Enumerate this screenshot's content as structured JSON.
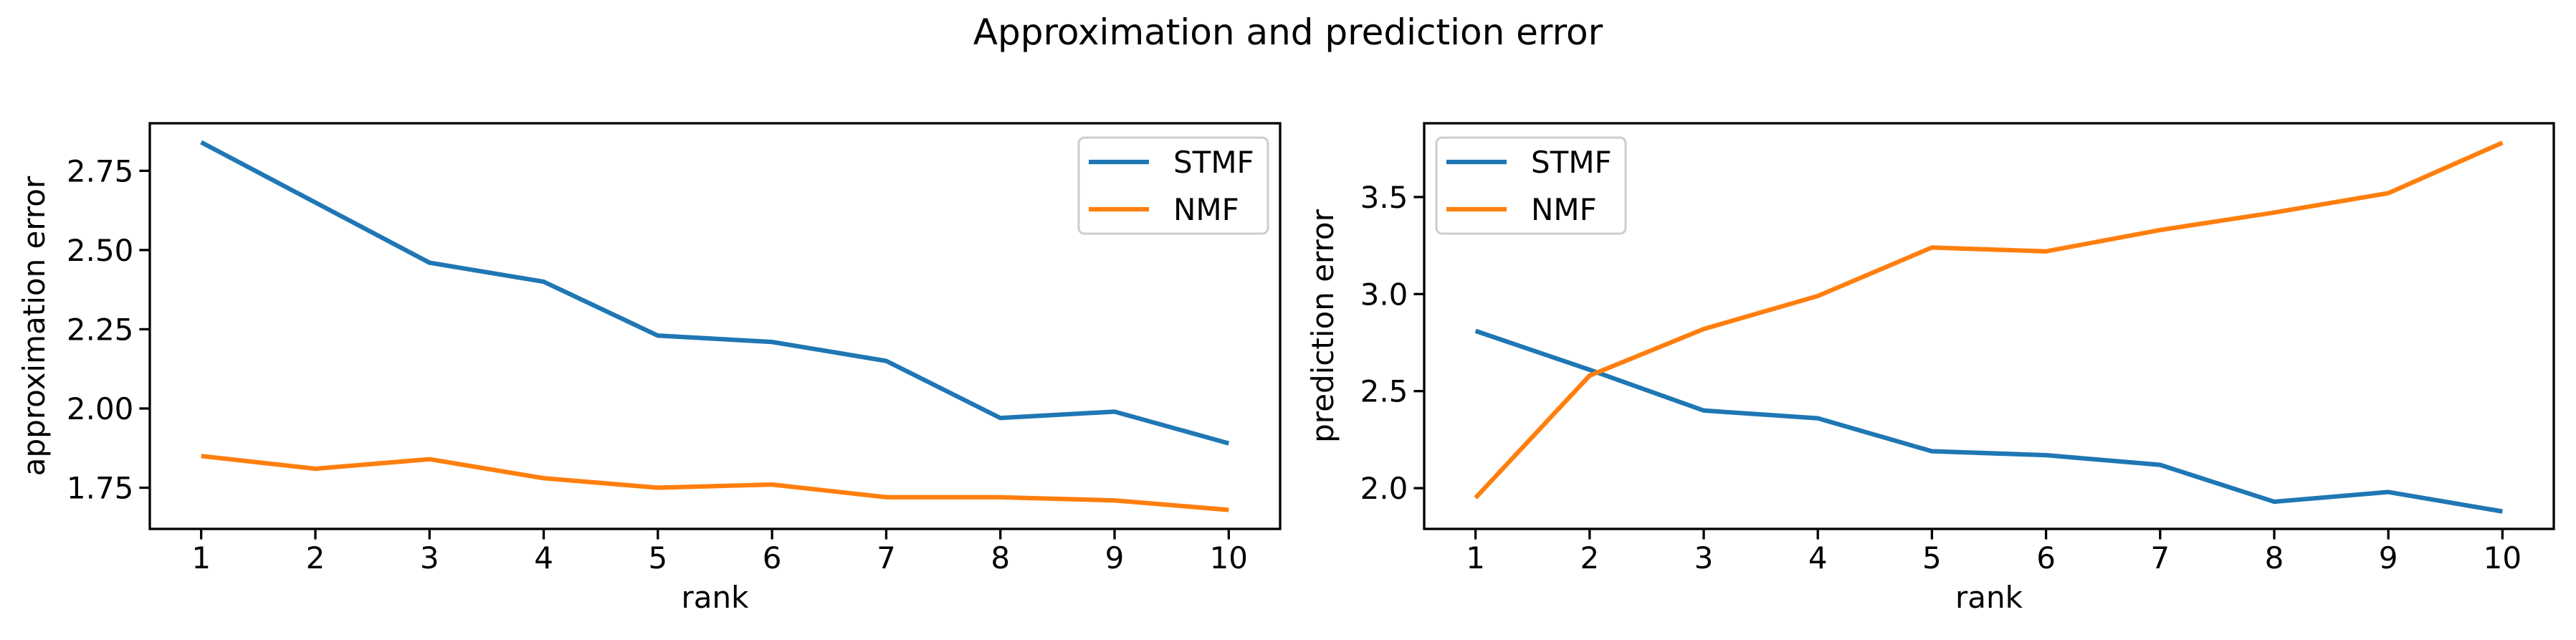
{
  "figure": {
    "title": "Approximation and prediction error",
    "background": "#ffffff",
    "text_color": "#000000"
  },
  "colors": {
    "stmf": "#1f77b4",
    "nmf": "#ff7f0e",
    "spine": "#000000",
    "legend_border": "#cccccc",
    "legend_fill": "rgba(255,255,255,0.8)"
  },
  "chart_data": [
    {
      "type": "line",
      "title": "",
      "xlabel": "rank",
      "ylabel": "approximation error",
      "grid": false,
      "xlim": [
        0.55,
        10.45
      ],
      "ylim": [
        1.62,
        2.9
      ],
      "x": [
        1,
        2,
        3,
        4,
        5,
        6,
        7,
        8,
        9,
        10
      ],
      "xticks": [
        1,
        2,
        3,
        4,
        5,
        6,
        7,
        8,
        9,
        10
      ],
      "xtick_labels": [
        "1",
        "2",
        "3",
        "4",
        "5",
        "6",
        "7",
        "8",
        "9",
        "10"
      ],
      "yticks": [
        1.75,
        2.0,
        2.25,
        2.5,
        2.75
      ],
      "ytick_labels": [
        "1.75",
        "2.00",
        "2.25",
        "2.50",
        "2.75"
      ],
      "legend_position": "upper-right",
      "series": [
        {
          "name": "STMF",
          "color": "#1f77b4",
          "values": [
            2.84,
            2.65,
            2.46,
            2.4,
            2.23,
            2.21,
            2.15,
            1.97,
            1.99,
            1.89
          ]
        },
        {
          "name": "NMF",
          "color": "#ff7f0e",
          "values": [
            1.85,
            1.81,
            1.84,
            1.78,
            1.75,
            1.76,
            1.72,
            1.72,
            1.71,
            1.68
          ]
        }
      ]
    },
    {
      "type": "line",
      "title": "",
      "xlabel": "rank",
      "ylabel": "prediction error",
      "grid": false,
      "xlim": [
        0.55,
        10.45
      ],
      "ylim": [
        1.79,
        3.88
      ],
      "x": [
        1,
        2,
        3,
        4,
        5,
        6,
        7,
        8,
        9,
        10
      ],
      "xticks": [
        1,
        2,
        3,
        4,
        5,
        6,
        7,
        8,
        9,
        10
      ],
      "xtick_labels": [
        "1",
        "2",
        "3",
        "4",
        "5",
        "6",
        "7",
        "8",
        "9",
        "10"
      ],
      "yticks": [
        2.0,
        2.5,
        3.0,
        3.5
      ],
      "ytick_labels": [
        "2.0",
        "2.5",
        "3.0",
        "3.5"
      ],
      "legend_position": "upper-left",
      "series": [
        {
          "name": "STMF",
          "color": "#1f77b4",
          "values": [
            2.81,
            2.61,
            2.4,
            2.36,
            2.19,
            2.17,
            2.12,
            1.93,
            1.98,
            1.88
          ]
        },
        {
          "name": "NMF",
          "color": "#ff7f0e",
          "values": [
            1.95,
            2.58,
            2.82,
            2.99,
            3.24,
            3.22,
            3.33,
            3.42,
            3.52,
            3.78
          ]
        }
      ]
    }
  ]
}
